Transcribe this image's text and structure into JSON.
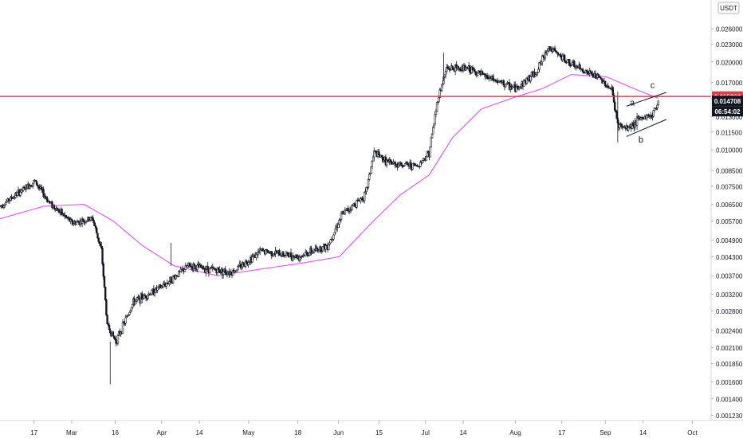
{
  "price_scale": {
    "currency": "USDT",
    "ticks": [
      "0.026000",
      "0.023000",
      "0.020000",
      "0.017000",
      "0.015000",
      "0.013000",
      "0.011500",
      "0.010000",
      "0.008500",
      "0.007500",
      "0.006500",
      "0.005700",
      "0.004900",
      "0.004300",
      "0.003700",
      "0.003200",
      "0.002800",
      "0.002400",
      "0.002100",
      "0.001850",
      "0.001600",
      "0.001400",
      "0.001230"
    ]
  },
  "time_axis": {
    "labels": [
      "17",
      "Mar",
      "16",
      "Apr",
      "14",
      "May",
      "18",
      "Jun",
      "15",
      "Jul",
      "14",
      "Aug",
      "17",
      "Sep",
      "14",
      "Oct"
    ]
  },
  "badges": {
    "horizontal_line_price": "0.015223",
    "last_price": "0.014708",
    "countdown": "06:54:02"
  },
  "wave_labels": {
    "a": "a",
    "b": "b",
    "c": "c"
  },
  "colors": {
    "horizontal_line": "#f23645",
    "moving_average": "#e040fb",
    "candles": "#131722",
    "countdown_bg": "#131722",
    "price_badge_bg": "#131722",
    "grid_text": "#131722"
  },
  "chart_data": {
    "type": "candlestick",
    "instrument_quote": "USDT",
    "scale": "log",
    "ylim": [
      0.00118,
      0.0318
    ],
    "x_range": [
      "Feb 05",
      "Oct 05"
    ],
    "close_path": [
      {
        "x": "Feb 05",
        "y": 0.0064
      },
      {
        "x": "Feb 17",
        "y": 0.0078
      },
      {
        "x": "Feb 22",
        "y": 0.0066
      },
      {
        "x": "Mar 01",
        "y": 0.0056
      },
      {
        "x": "Mar 08",
        "y": 0.0058
      },
      {
        "x": "Mar 11",
        "y": 0.0045
      },
      {
        "x": "Mar 13",
        "y": 0.0025
      },
      {
        "x": "Mar 16",
        "y": 0.0022
      },
      {
        "x": "Mar 22",
        "y": 0.003
      },
      {
        "x": "Apr 01",
        "y": 0.0034
      },
      {
        "x": "Apr 10",
        "y": 0.004
      },
      {
        "x": "Apr 25",
        "y": 0.0038
      },
      {
        "x": "May 05",
        "y": 0.0045
      },
      {
        "x": "May 18",
        "y": 0.0043
      },
      {
        "x": "May 28",
        "y": 0.0047
      },
      {
        "x": "Jun 02",
        "y": 0.006
      },
      {
        "x": "Jun 10",
        "y": 0.007
      },
      {
        "x": "Jun 13",
        "y": 0.0098
      },
      {
        "x": "Jun 18",
        "y": 0.009
      },
      {
        "x": "Jun 28",
        "y": 0.0088
      },
      {
        "x": "Jul 02",
        "y": 0.0098
      },
      {
        "x": "Jul 05",
        "y": 0.015
      },
      {
        "x": "Jul 08",
        "y": 0.019
      },
      {
        "x": "Jul 15",
        "y": 0.019
      },
      {
        "x": "Jul 25",
        "y": 0.0172
      },
      {
        "x": "Aug 01",
        "y": 0.0162
      },
      {
        "x": "Aug 08",
        "y": 0.0185
      },
      {
        "x": "Aug 12",
        "y": 0.0225
      },
      {
        "x": "Aug 20",
        "y": 0.0196
      },
      {
        "x": "Aug 30",
        "y": 0.0175
      },
      {
        "x": "Sep 03",
        "y": 0.016
      },
      {
        "x": "Sep 05",
        "y": 0.0122
      },
      {
        "x": "Sep 08",
        "y": 0.0118
      },
      {
        "x": "Sep 13",
        "y": 0.0128
      },
      {
        "x": "Sep 17",
        "y": 0.0132
      },
      {
        "x": "Sep 19",
        "y": 0.0147
      }
    ],
    "moving_average": [
      {
        "x": "Feb 05",
        "y": 0.0058
      },
      {
        "x": "Feb 20",
        "y": 0.0064
      },
      {
        "x": "Mar 05",
        "y": 0.0065
      },
      {
        "x": "Mar 15",
        "y": 0.0057
      },
      {
        "x": "Mar 25",
        "y": 0.0047
      },
      {
        "x": "Apr 05",
        "y": 0.004
      },
      {
        "x": "Apr 20",
        "y": 0.0037
      },
      {
        "x": "May 05",
        "y": 0.0039
      },
      {
        "x": "May 20",
        "y": 0.0041
      },
      {
        "x": "Jun 01",
        "y": 0.0043
      },
      {
        "x": "Jun 12",
        "y": 0.0056
      },
      {
        "x": "Jun 22",
        "y": 0.007
      },
      {
        "x": "Jul 02",
        "y": 0.0082
      },
      {
        "x": "Jul 10",
        "y": 0.011
      },
      {
        "x": "Jul 20",
        "y": 0.0138
      },
      {
        "x": "Aug 01",
        "y": 0.0152
      },
      {
        "x": "Aug 10",
        "y": 0.0162
      },
      {
        "x": "Aug 20",
        "y": 0.0181
      },
      {
        "x": "Sep 01",
        "y": 0.0178
      },
      {
        "x": "Sep 10",
        "y": 0.0163
      },
      {
        "x": "Sep 19",
        "y": 0.015
      }
    ],
    "horizontal_line": 0.015223,
    "channel": {
      "upper": [
        {
          "x": "Sep 08",
          "y": 0.0141
        },
        {
          "x": "Sep 19",
          "y": 0.0156
        }
      ],
      "lower": [
        {
          "x": "Sep 08",
          "y": 0.0111
        },
        {
          "x": "Sep 19",
          "y": 0.0126
        }
      ]
    },
    "wave_points": [
      {
        "label": "a",
        "x": "Sep 10",
        "y": 0.0142
      },
      {
        "label": "b",
        "x": "Sep 13",
        "y": 0.0106
      },
      {
        "label": "c",
        "x": "Sep 17",
        "y": 0.0163
      }
    ],
    "last_price": 0.014708
  }
}
